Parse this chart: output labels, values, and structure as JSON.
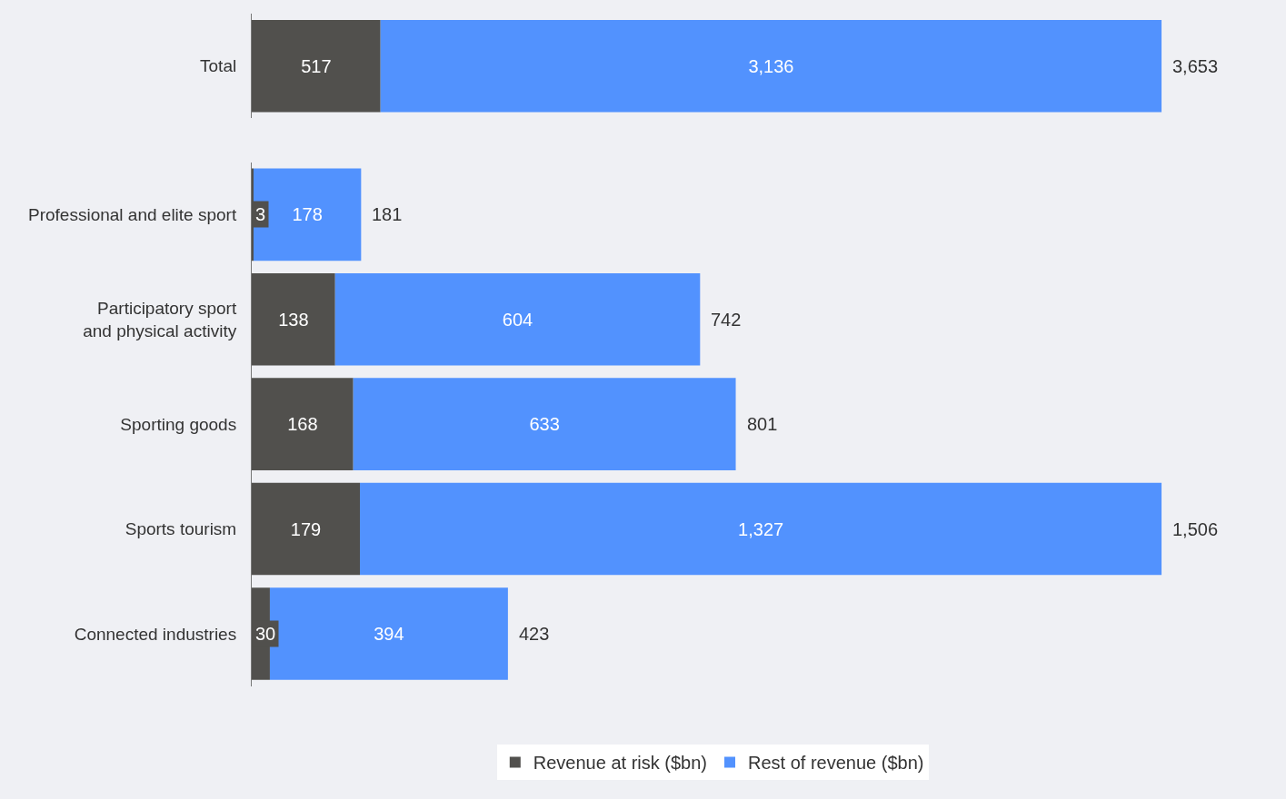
{
  "chart_data": [
    {
      "type": "bar",
      "orientation": "horizontal",
      "stacked": true,
      "categories": [
        "Total"
      ],
      "series": [
        {
          "color": "#51504d",
          "values": [
            517
          ],
          "value_labels": [
            "517"
          ]
        },
        {
          "color": "#5292fe",
          "values": [
            3136
          ],
          "value_labels": [
            "3,136"
          ]
        }
      ],
      "totals": [
        "3,653"
      ],
      "grid": false
    },
    {
      "type": "bar",
      "orientation": "horizontal",
      "stacked": true,
      "categories": [
        "Professional and elite sport",
        "Participatory sport\nand physical activity",
        "Sporting goods",
        "Sports tourism",
        "Connected industries"
      ],
      "series": [
        {
          "name": "Revenue at risk ($bn)",
          "color": "#51504d",
          "values": [
            3,
            138,
            168,
            179,
            30
          ],
          "value_labels": [
            "3",
            "138",
            "168",
            "179",
            "30"
          ]
        },
        {
          "name": "Rest of revenue ($bn)",
          "color": "#5292fe",
          "values": [
            178,
            604,
            633,
            1327,
            394
          ],
          "value_labels": [
            "178",
            "604",
            "633",
            "1,327",
            "394"
          ]
        }
      ],
      "totals": [
        "181",
        "742",
        "801",
        "1,506",
        "423"
      ],
      "legend": "bottom",
      "grid": false
    }
  ]
}
